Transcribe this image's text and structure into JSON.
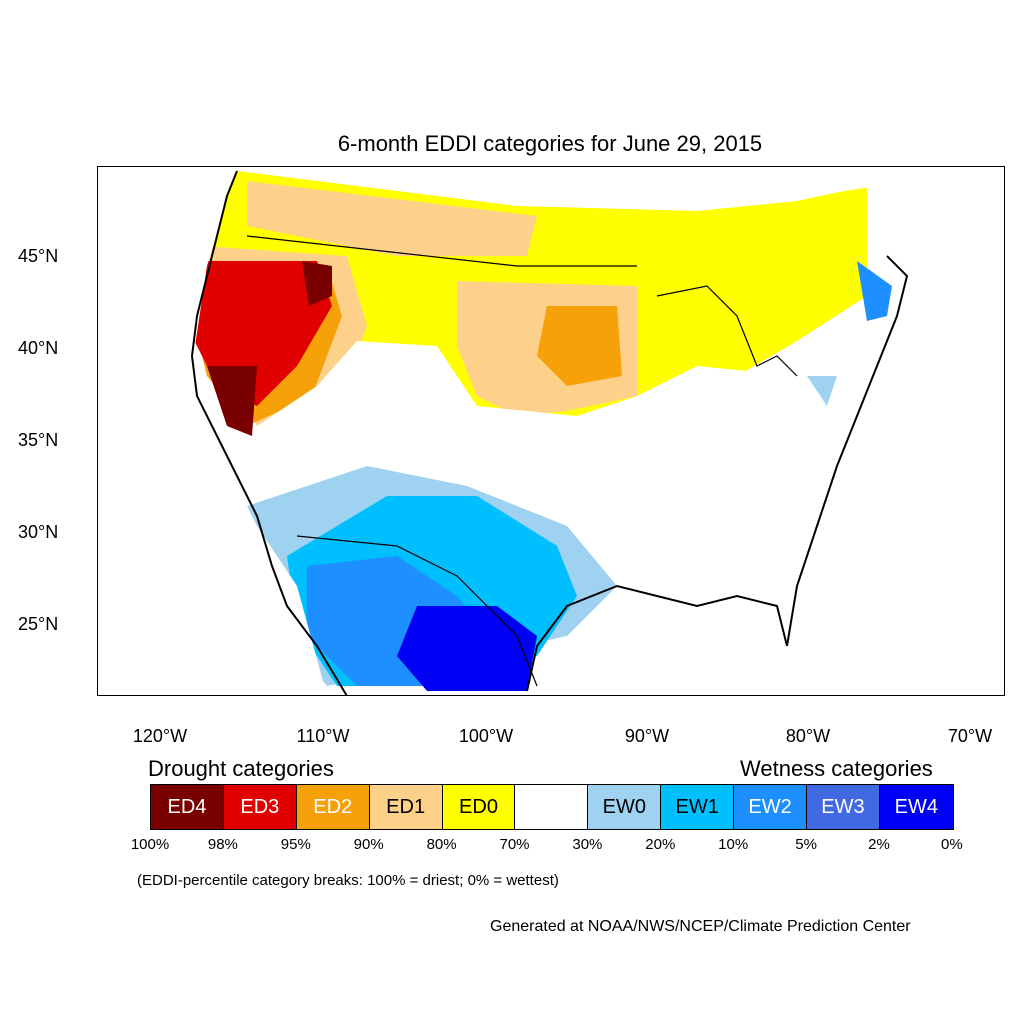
{
  "title": "6-month EDDI categories for June 29, 2015",
  "map": {
    "lat_labels": [
      "45°N",
      "40°N",
      "35°N",
      "30°N",
      "25°N"
    ],
    "lon_labels": [
      "120°W",
      "110°W",
      "100°W",
      "90°W",
      "80°W",
      "70°W"
    ],
    "region_colors": {
      "ED4": "#7a0000",
      "ED3": "#e00000",
      "ED2": "#f7a10a",
      "ED1": "#fdd18a",
      "ED0": "#ffff00",
      "neutral": "#ffffff",
      "EW0": "#9fd2f0",
      "EW1": "#00bfff",
      "EW2": "#1e8fff",
      "EW3": "#4169e1",
      "EW4": "#0000f5"
    }
  },
  "legend": {
    "drought_heading": "Drought categories",
    "wetness_heading": "Wetness categories",
    "categories": [
      {
        "label": "ED4",
        "color": "#7a0000",
        "text_color": "#ffffff"
      },
      {
        "label": "ED3",
        "color": "#e00000",
        "text_color": "#ffffff"
      },
      {
        "label": "ED2",
        "color": "#f7a10a",
        "text_color": "#ffffff"
      },
      {
        "label": "ED1",
        "color": "#fdd18a",
        "text_color": "#000000"
      },
      {
        "label": "ED0",
        "color": "#ffff00",
        "text_color": "#000000"
      },
      {
        "label": "",
        "color": "#ffffff",
        "text_color": "#000000"
      },
      {
        "label": "EW0",
        "color": "#9fd2f0",
        "text_color": "#000000"
      },
      {
        "label": "EW1",
        "color": "#00bfff",
        "text_color": "#000000"
      },
      {
        "label": "EW2",
        "color": "#1e8fff",
        "text_color": "#ffffff"
      },
      {
        "label": "EW3",
        "color": "#4169e1",
        "text_color": "#ffffff"
      },
      {
        "label": "EW4",
        "color": "#0000f5",
        "text_color": "#ffffff"
      }
    ],
    "breaks": [
      "100%",
      "98%",
      "95%",
      "90%",
      "80%",
      "70%",
      "30%",
      "20%",
      "10%",
      "5%",
      "2%",
      "0%"
    ]
  },
  "note": "(EDDI-percentile category breaks: 100% = driest; 0% = wettest)",
  "credit": "Generated at NOAA/NWS/NCEP/Climate Prediction Center"
}
